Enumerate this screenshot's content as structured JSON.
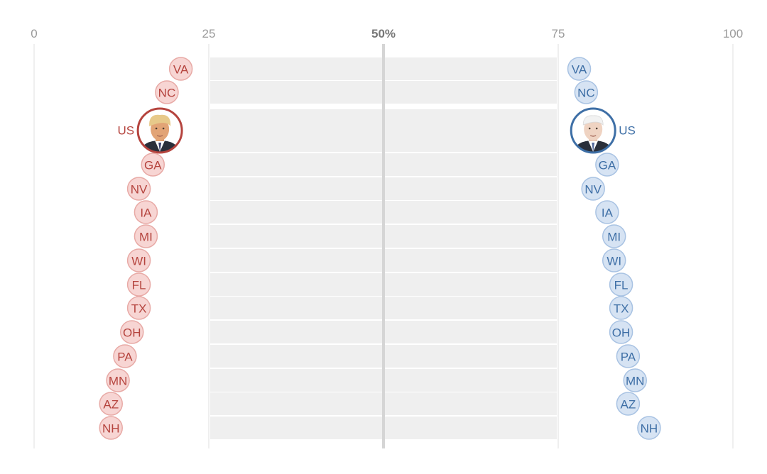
{
  "chart_data": {
    "type": "dot",
    "x_ticks": [
      {
        "value": 0,
        "label": "0"
      },
      {
        "value": 25,
        "label": "25"
      },
      {
        "value": 50,
        "label": "50%"
      },
      {
        "value": 75,
        "label": "75"
      },
      {
        "value": 100,
        "label": "100"
      }
    ],
    "xlim": [
      0,
      100
    ],
    "series": [
      {
        "color": "#b5443e",
        "fill": "#f7d5d3",
        "stroke": "#e8aaa6",
        "portrait": "trump-portrait"
      },
      {
        "color": "#3e6fa6",
        "fill": "#d6e3f3",
        "stroke": "#a9c3e3",
        "portrait": "biden-portrait"
      }
    ],
    "rows": [
      {
        "label": "VA",
        "left": 21,
        "right": 78
      },
      {
        "label": "NC",
        "left": 19,
        "right": 79
      },
      {
        "label": "US",
        "left": 18,
        "right": 80,
        "highlight": true
      },
      {
        "label": "GA",
        "left": 17,
        "right": 82
      },
      {
        "label": "NV",
        "left": 15,
        "right": 80
      },
      {
        "label": "IA",
        "left": 16,
        "right": 82
      },
      {
        "label": "MI",
        "left": 16,
        "right": 83
      },
      {
        "label": "WI",
        "left": 15,
        "right": 83
      },
      {
        "label": "FL",
        "left": 15,
        "right": 84
      },
      {
        "label": "TX",
        "left": 15,
        "right": 84
      },
      {
        "label": "OH",
        "left": 14,
        "right": 84
      },
      {
        "label": "PA",
        "left": 13,
        "right": 85
      },
      {
        "label": "MN",
        "left": 12,
        "right": 86
      },
      {
        "label": "AZ",
        "left": 11,
        "right": 85
      },
      {
        "label": "NH",
        "left": 11,
        "right": 88
      }
    ]
  }
}
